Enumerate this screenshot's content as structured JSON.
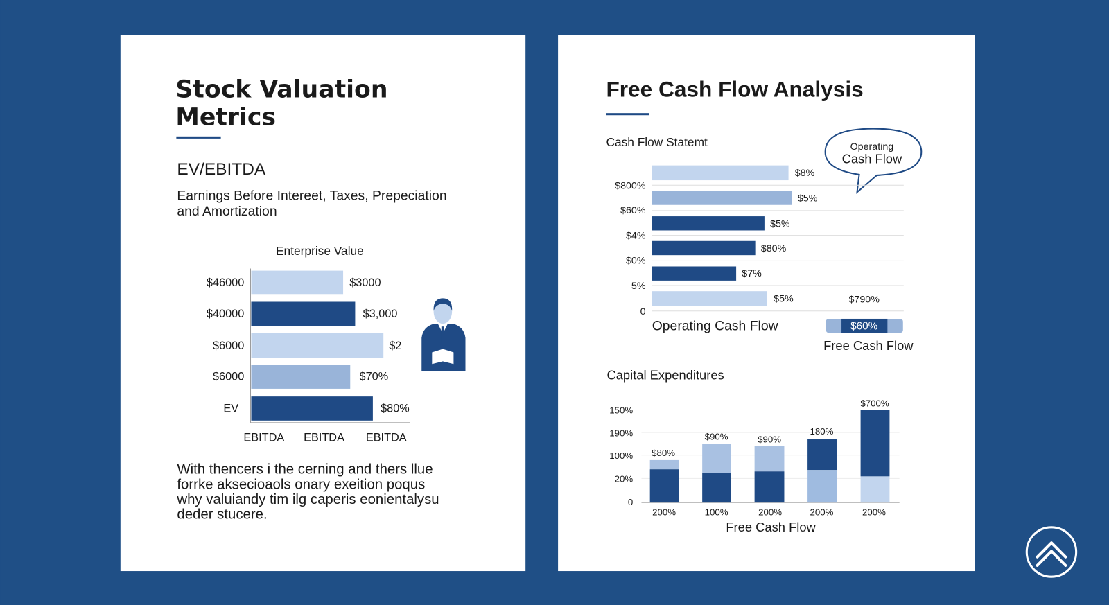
{
  "left_card": {
    "title": [
      "Stock Valuation",
      "Metrics"
    ],
    "subtitle": "EV/EBITDA",
    "description": [
      "Earnings Before Intereet, Taxes, Prepeciation",
      "and Amortization"
    ],
    "chart": {
      "title": "Enterprise Value",
      "row_labels": [
        "$46000",
        "$40000",
        "$6000",
        "$6000",
        "EV"
      ],
      "bar_labels": [
        "$3000",
        "$3,000",
        "$2",
        "$70%",
        "$80%"
      ],
      "column_labels": [
        "EBITDA",
        "EBITDA",
        "EBITDA"
      ]
    },
    "paragraph": [
      "With thencers i the cerning and thers llue",
      "forrke aksecioaols onary exeition poqus",
      "why valuiandy tim ilg caperis eonientalysu",
      "deder stucere."
    ]
  },
  "right_card": {
    "title": "Free Cash Flow Analysis",
    "section1": "Cash Flow Statemt",
    "bubble": [
      "Operating",
      "Cash Flow"
    ],
    "chart1": {
      "row_labels": [
        "$800%",
        "$60%",
        "$4%",
        "$0%",
        "5%",
        "0"
      ],
      "bar_labels": [
        "$8%",
        "$5%",
        "$5%",
        "$80%",
        "$7%",
        "$5%"
      ],
      "extra_label": "$790%",
      "x_label": "Operating Cash Flow",
      "legend_value": "$60%",
      "legend_label": "Free Cash Flow"
    },
    "section2": "Capital Expenditures",
    "chart2": {
      "row_labels": [
        "150%",
        "190%",
        "100%",
        "20%",
        "0"
      ],
      "bar_labels": [
        "$80%",
        "$90%",
        "$90%",
        "180%",
        "$700%"
      ],
      "column_labels": [
        "200%",
        "100%",
        "200%",
        "200%",
        "200%"
      ],
      "x_label": "Free Cash Flow"
    }
  }
}
